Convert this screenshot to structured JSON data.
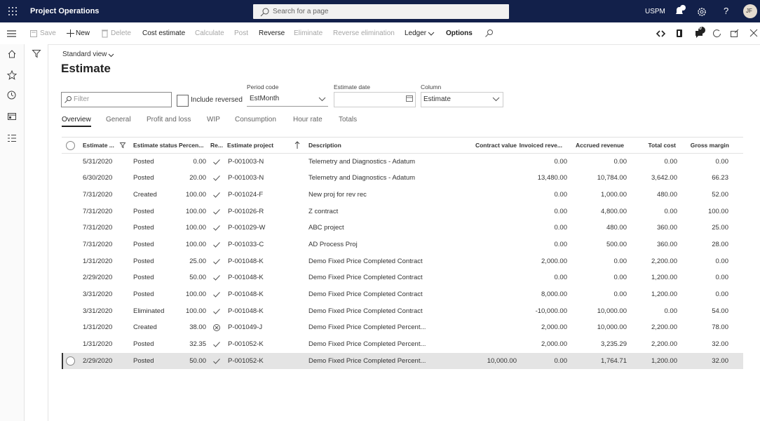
{
  "topbar": {
    "app_name": "Project Operations",
    "search_placeholder": "Search for a page",
    "company": "USPM",
    "help": "?",
    "user_initials": "JF"
  },
  "action_bar": {
    "buttons": [
      {
        "label": "Save",
        "enabled": false
      },
      {
        "label": "New",
        "enabled": true
      },
      {
        "label": "Delete",
        "enabled": false
      },
      {
        "label": "Cost estimate",
        "enabled": true
      },
      {
        "label": "Calculate",
        "enabled": false
      },
      {
        "label": "Post",
        "enabled": false
      },
      {
        "label": "Reverse",
        "enabled": true
      },
      {
        "label": "Eliminate",
        "enabled": false
      },
      {
        "label": "Reverse elimination",
        "enabled": false
      },
      {
        "label": "Ledger",
        "enabled": true
      },
      {
        "label": "Options",
        "enabled": true
      }
    ],
    "message_badge": "0"
  },
  "page": {
    "view": "Standard view",
    "title": "Estimate",
    "filter_placeholder": "Filter",
    "include_reversed": "Include reversed",
    "period_code": {
      "label": "Period code",
      "value": "EstMonth"
    },
    "estimate_date": {
      "label": "Estimate date"
    },
    "column": {
      "label": "Column",
      "value": "Estimate"
    }
  },
  "tabs": {
    "items": [
      "Overview",
      "General",
      "Profit and loss",
      "WIP",
      "Consumption",
      "Hour rate",
      "Totals"
    ],
    "active": 0
  },
  "table": {
    "columns": [
      "Estimate ...",
      "Estimate status",
      "Percen...",
      "Re...",
      "Estimate project",
      "Description",
      "Contract value",
      "Invoiced reve...",
      "Accrued revenue",
      "Total cost",
      "Gross margin"
    ],
    "selected_row": 12,
    "rows": [
      [
        "5/31/2020",
        "Posted",
        "0.00",
        "check",
        "P-001003-N",
        "Telemetry and Diagnostics - Adatum",
        null,
        "0.00",
        "0.00",
        "0.00",
        "0.00"
      ],
      [
        "6/30/2020",
        "Posted",
        "20.00",
        "check",
        "P-001003-N",
        "Telemetry and Diagnostics - Adatum",
        null,
        "13,480.00",
        "10,784.00",
        "3,642.00",
        "66.23"
      ],
      [
        "7/31/2020",
        "Created",
        "100.00",
        "check",
        "P-001024-F",
        "New proj for rev rec",
        null,
        "0.00",
        "1,000.00",
        "480.00",
        "52.00"
      ],
      [
        "7/31/2020",
        "Posted",
        "100.00",
        "check",
        "P-001026-R",
        "Z contract",
        null,
        "0.00",
        "4,800.00",
        "0.00",
        "100.00"
      ],
      [
        "7/31/2020",
        "Posted",
        "100.00",
        "check",
        "P-001029-W",
        "ABC project",
        null,
        "0.00",
        "480.00",
        "360.00",
        "25.00"
      ],
      [
        "7/31/2020",
        "Posted",
        "100.00",
        "check",
        "P-001033-C",
        "AD Process Proj",
        null,
        "0.00",
        "500.00",
        "360.00",
        "28.00"
      ],
      [
        "1/31/2020",
        "Posted",
        "25.00",
        "check",
        "P-001048-K",
        "Demo Fixed Price Completed Contract",
        null,
        "2,000.00",
        "0.00",
        "2,200.00",
        "0.00"
      ],
      [
        "2/29/2020",
        "Posted",
        "50.00",
        "check",
        "P-001048-K",
        "Demo Fixed Price Completed Contract",
        null,
        "0.00",
        "0.00",
        "1,200.00",
        "0.00"
      ],
      [
        "3/31/2020",
        "Posted",
        "100.00",
        "check",
        "P-001048-K",
        "Demo Fixed Price Completed Contract",
        null,
        "8,000.00",
        "0.00",
        "1,200.00",
        "0.00"
      ],
      [
        "3/31/2020",
        "Eliminated",
        "100.00",
        "check",
        "P-001048-K",
        "Demo Fixed Price Completed Contract",
        null,
        "-10,000.00",
        "10,000.00",
        "0.00",
        "54.00"
      ],
      [
        "1/31/2020",
        "Created",
        "38.00",
        "cancel",
        "P-001049-J",
        "Demo Fixed Price Completed Percent...",
        null,
        "2,000.00",
        "10,000.00",
        "2,200.00",
        "78.00"
      ],
      [
        "1/31/2020",
        "Posted",
        "32.35",
        "check",
        "P-001052-K",
        "Demo Fixed Price Completed Percent...",
        null,
        "2,000.00",
        "3,235.29",
        "2,200.00",
        "32.00"
      ],
      [
        "2/29/2020",
        "Posted",
        "50.00",
        "check",
        "P-001052-K",
        "Demo Fixed Price Completed Percent...",
        "10,000.00",
        "0.00",
        "1,764.71",
        "1,200.00",
        "32.00"
      ]
    ]
  }
}
